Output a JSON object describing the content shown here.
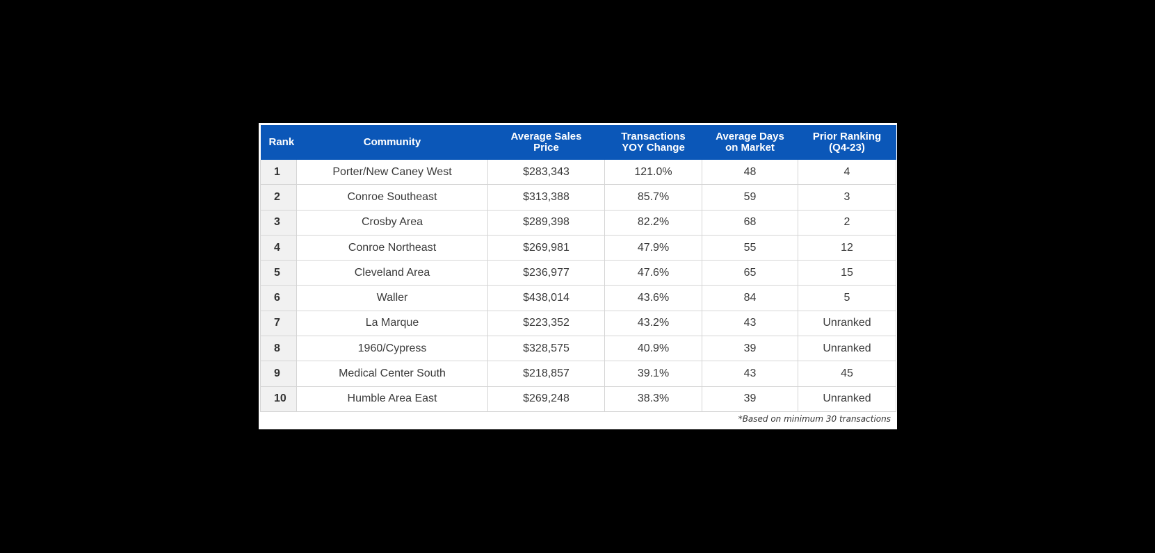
{
  "colors": {
    "background": "#000000",
    "header_bg": "#0b57b8",
    "header_text": "#ffffff",
    "rank_cell_bg": "#f1f1f1",
    "grid": "#d5d5d5"
  },
  "table": {
    "headers": {
      "rank": "Rank",
      "community": "Community",
      "avg_price_line1": "Average Sales",
      "avg_price_line2": "Price",
      "yoy_line1": "Transactions",
      "yoy_line2": "YOY Change",
      "days_line1": "Average Days",
      "days_line2": "on Market",
      "prior_line1": "Prior Ranking",
      "prior_line2": "(Q4-23)"
    },
    "rows": [
      {
        "rank": "1",
        "community": "Porter/New Caney West",
        "avg_price": "$283,343",
        "yoy": "121.0%",
        "days": "48",
        "prior": "4"
      },
      {
        "rank": "2",
        "community": "Conroe Southeast",
        "avg_price": "$313,388",
        "yoy": "85.7%",
        "days": "59",
        "prior": "3"
      },
      {
        "rank": "3",
        "community": "Crosby Area",
        "avg_price": "$289,398",
        "yoy": "82.2%",
        "days": "68",
        "prior": "2"
      },
      {
        "rank": "4",
        "community": "Conroe Northeast",
        "avg_price": "$269,981",
        "yoy": "47.9%",
        "days": "55",
        "prior": "12"
      },
      {
        "rank": "5",
        "community": "Cleveland Area",
        "avg_price": "$236,977",
        "yoy": "47.6%",
        "days": "65",
        "prior": "15"
      },
      {
        "rank": "6",
        "community": "Waller",
        "avg_price": "$438,014",
        "yoy": "43.6%",
        "days": "84",
        "prior": "5"
      },
      {
        "rank": "7",
        "community": "La Marque",
        "avg_price": "$223,352",
        "yoy": "43.2%",
        "days": "43",
        "prior": "Unranked"
      },
      {
        "rank": "8",
        "community": "1960/Cypress",
        "avg_price": "$328,575",
        "yoy": "40.9%",
        "days": "39",
        "prior": "Unranked"
      },
      {
        "rank": "9",
        "community": "Medical Center South",
        "avg_price": "$218,857",
        "yoy": "39.1%",
        "days": "43",
        "prior": "45"
      },
      {
        "rank": "10",
        "community": "Humble Area East",
        "avg_price": "$269,248",
        "yoy": "38.3%",
        "days": "39",
        "prior": "Unranked"
      }
    ],
    "footnote": "*Based on minimum 30 transactions"
  }
}
